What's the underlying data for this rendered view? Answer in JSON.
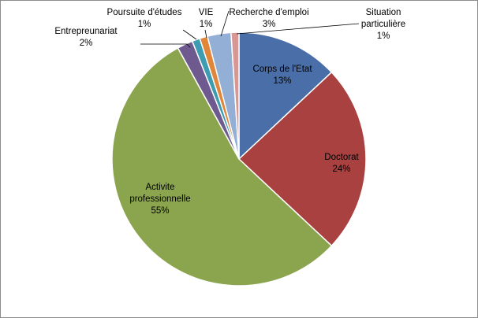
{
  "chart_data": {
    "type": "pie",
    "title": "",
    "slices": [
      {
        "category": "Corps de l'Etat",
        "value": 13,
        "value_label": "13%",
        "color": "#4a6fa8"
      },
      {
        "category": "Doctorat",
        "value": 24,
        "value_label": "24%",
        "color": "#a8413f"
      },
      {
        "category": "Activite professionnelle",
        "value": 55,
        "value_label": "55%",
        "color": "#8ba54f"
      },
      {
        "category": "Entrepreunariat",
        "value": 2,
        "value_label": "2%",
        "color": "#6e5a8e"
      },
      {
        "category": "Poursuite d'études",
        "value": 1,
        "value_label": "1%",
        "color": "#3d9cb1"
      },
      {
        "category": "VIE",
        "value": 1,
        "value_label": "1%",
        "color": "#e0853a"
      },
      {
        "category": "Recherche d'emploi",
        "value": 3,
        "value_label": "3%",
        "color": "#93afd6"
      },
      {
        "category": "Situation particulière",
        "value": 1,
        "value_label": "1%",
        "color": "#d99794"
      }
    ],
    "label_names": {
      "corps": "Corps de l'Etat",
      "doctorat": "Doctorat",
      "activite_1": "Activite",
      "activite_2": "professionnelle",
      "entre": "Entrepreunariat",
      "poursuite": "Poursuite d'études",
      "vie": "VIE",
      "recherche": "Recherche d'emploi",
      "situation_1": "Situation",
      "situation_2": "particulière"
    },
    "label_values": {
      "corps": "13%",
      "doctorat": "24%",
      "activite": "55%",
      "entre": "2%",
      "poursuite": "1%",
      "vie": "1%",
      "recherche": "3%",
      "situation": "1%"
    },
    "legend": "none"
  }
}
